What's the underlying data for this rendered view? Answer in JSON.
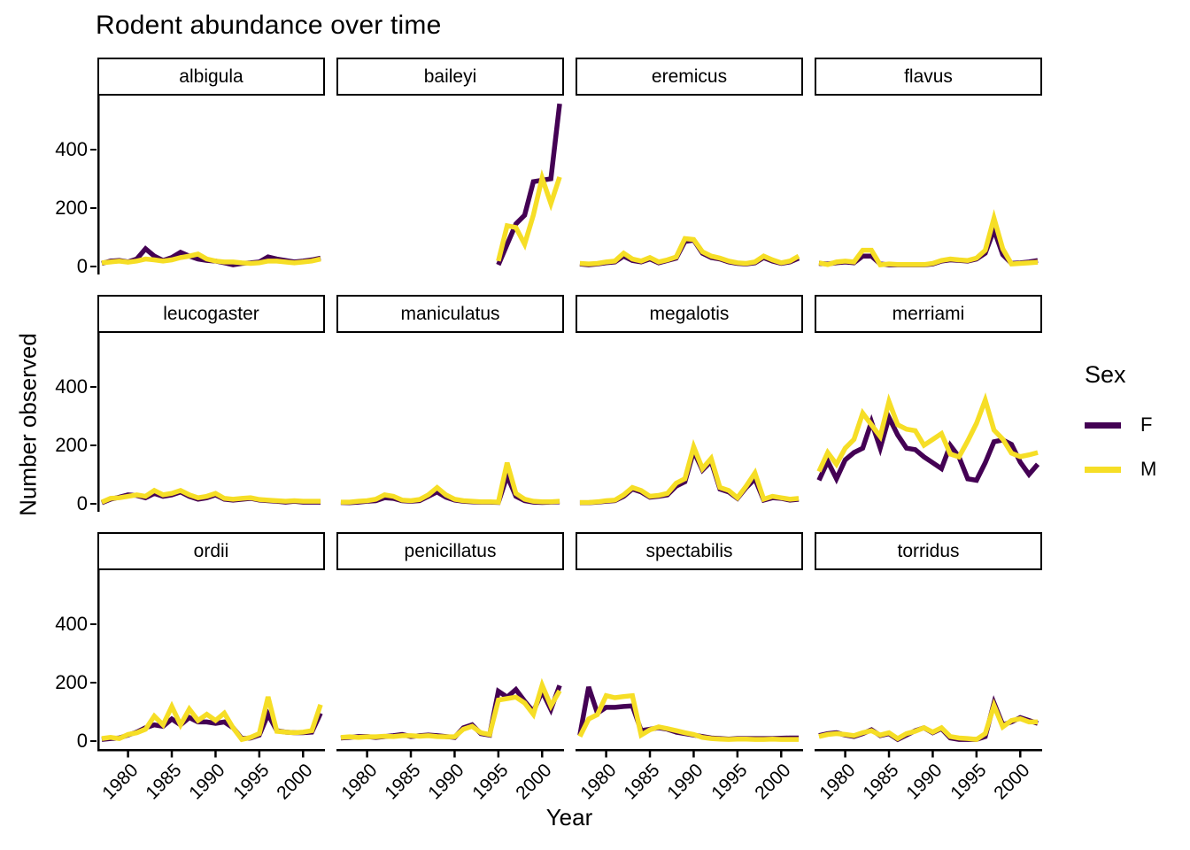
{
  "title": "Rodent abundance over time",
  "axes": {
    "x_label": "Year",
    "y_label": "Number observed"
  },
  "legend": {
    "title": "Sex",
    "entries": [
      {
        "label": "F",
        "color": "#440154"
      },
      {
        "label": "M",
        "color": "#F6DE26"
      }
    ]
  },
  "chart_data": {
    "type": "line",
    "title": "Rodent abundance over time",
    "xlabel": "Year",
    "ylabel": "Number observed",
    "legend_title": "Sex",
    "legend_position": "right",
    "grid": false,
    "x": [
      1977,
      1978,
      1979,
      1980,
      1981,
      1982,
      1983,
      1984,
      1985,
      1986,
      1987,
      1988,
      1989,
      1990,
      1991,
      1992,
      1993,
      1994,
      1995,
      1996,
      1997,
      1998,
      1999,
      2000,
      2001,
      2002
    ],
    "x_ticks": [
      1980,
      1985,
      1990,
      1995,
      2000
    ],
    "y_ticks": [
      0,
      200,
      400
    ],
    "xlim": [
      1976.5,
      2002.5
    ],
    "ylim": [
      -28,
      585
    ],
    "series_names": [
      "F",
      "M"
    ],
    "colors": {
      "F": "#440154",
      "M": "#F6DE26"
    },
    "facets": [
      {
        "name": "albigula",
        "F": [
          10,
          18,
          20,
          15,
          25,
          60,
          35,
          20,
          30,
          48,
          35,
          25,
          20,
          18,
          12,
          5,
          10,
          12,
          15,
          32,
          25,
          20,
          15,
          18,
          22,
          28
        ],
        "M": [
          12,
          15,
          18,
          14,
          18,
          25,
          22,
          18,
          22,
          30,
          35,
          42,
          25,
          18,
          15,
          15,
          12,
          10,
          12,
          18,
          18,
          15,
          12,
          15,
          18,
          25
        ]
      },
      {
        "name": "baileyi",
        "F": [
          null,
          null,
          null,
          null,
          null,
          null,
          null,
          null,
          null,
          null,
          null,
          null,
          null,
          null,
          null,
          null,
          null,
          null,
          5,
          75,
          145,
          175,
          290,
          295,
          300,
          557
        ],
        "M": [
          null,
          null,
          null,
          null,
          null,
          null,
          null,
          null,
          null,
          null,
          null,
          null,
          null,
          null,
          null,
          null,
          null,
          null,
          18,
          139,
          133,
          76,
          176,
          303,
          215,
          306
        ]
      },
      {
        "name": "eremicus",
        "F": [
          8,
          5,
          8,
          12,
          15,
          35,
          20,
          15,
          25,
          12,
          20,
          28,
          85,
          90,
          45,
          30,
          25,
          15,
          10,
          8,
          12,
          30,
          18,
          10,
          15,
          28
        ],
        "M": [
          10,
          8,
          10,
          15,
          18,
          45,
          25,
          18,
          30,
          15,
          22,
          32,
          95,
          92,
          50,
          35,
          28,
          18,
          12,
          10,
          15,
          35,
          22,
          12,
          18,
          35
        ]
      },
      {
        "name": "flavus",
        "F": [
          10,
          8,
          12,
          15,
          12,
          35,
          35,
          8,
          5,
          5,
          5,
          5,
          5,
          8,
          18,
          22,
          20,
          18,
          25,
          45,
          125,
          40,
          10,
          12,
          15,
          20
        ],
        "M": [
          12,
          6,
          15,
          18,
          15,
          55,
          55,
          5,
          8,
          6,
          6,
          6,
          6,
          10,
          20,
          25,
          22,
          20,
          28,
          55,
          165,
          60,
          8,
          10,
          12,
          14
        ]
      },
      {
        "name": "leucogaster",
        "F": [
          3,
          15,
          22,
          30,
          28,
          20,
          35,
          25,
          30,
          40,
          25,
          15,
          20,
          30,
          15,
          12,
          15,
          18,
          12,
          10,
          8,
          5,
          8,
          5,
          5,
          5
        ],
        "M": [
          5,
          18,
          20,
          25,
          30,
          25,
          45,
          30,
          35,
          45,
          30,
          20,
          25,
          35,
          18,
          15,
          18,
          20,
          14,
          12,
          10,
          8,
          10,
          8,
          8,
          8
        ]
      },
      {
        "name": "maniculatus",
        "F": [
          4,
          3,
          5,
          8,
          10,
          20,
          18,
          10,
          8,
          10,
          25,
          40,
          22,
          12,
          8,
          6,
          5,
          5,
          4,
          95,
          25,
          10,
          5,
          4,
          5,
          6
        ],
        "M": [
          5,
          5,
          8,
          10,
          15,
          30,
          25,
          12,
          10,
          14,
          30,
          55,
          30,
          15,
          10,
          8,
          6,
          6,
          5,
          140,
          35,
          15,
          8,
          6,
          6,
          8
        ]
      },
      {
        "name": "megalotis",
        "F": [
          3,
          3,
          5,
          8,
          10,
          25,
          50,
          40,
          22,
          25,
          30,
          60,
          75,
          180,
          115,
          145,
          50,
          40,
          18,
          55,
          85,
          12,
          20,
          18,
          12,
          15
        ],
        "M": [
          4,
          4,
          6,
          10,
          12,
          30,
          55,
          45,
          25,
          28,
          35,
          70,
          85,
          195,
          120,
          155,
          55,
          45,
          20,
          60,
          105,
          15,
          25,
          20,
          15,
          18
        ]
      },
      {
        "name": "merriami",
        "F": [
          80,
          145,
          85,
          150,
          175,
          190,
          280,
          190,
          295,
          235,
          190,
          185,
          160,
          140,
          120,
          200,
          160,
          85,
          80,
          140,
          212,
          218,
          203,
          142,
          100,
          135
        ],
        "M": [
          110,
          175,
          135,
          190,
          220,
          310,
          270,
          230,
          350,
          270,
          255,
          250,
          200,
          220,
          240,
          170,
          160,
          215,
          275,
          355,
          252,
          221,
          173,
          161,
          167,
          175
        ]
      },
      {
        "name": "ordii",
        "F": [
          5,
          8,
          10,
          20,
          30,
          45,
          55,
          50,
          75,
          55,
          80,
          65,
          65,
          60,
          65,
          45,
          8,
          10,
          20,
          91,
          35,
          30,
          28,
          28,
          30,
          95
        ],
        "M": [
          8,
          12,
          8,
          22,
          28,
          40,
          85,
          55,
          118,
          55,
          109,
          70,
          91,
          70,
          95,
          45,
          5,
          12,
          25,
          151,
          33,
          30,
          28,
          30,
          35,
          124
        ]
      },
      {
        "name": "penicillatus",
        "F": [
          10,
          12,
          15,
          15,
          12,
          15,
          18,
          22,
          15,
          18,
          20,
          18,
          15,
          12,
          45,
          55,
          25,
          20,
          170,
          150,
          176,
          136,
          100,
          170,
          108,
          190
        ],
        "M": [
          12,
          14,
          12,
          14,
          14,
          16,
          15,
          18,
          18,
          16,
          18,
          15,
          14,
          14,
          40,
          50,
          28,
          22,
          140,
          145,
          150,
          130,
          91,
          191,
          120,
          172
        ]
      },
      {
        "name": "spectabilis",
        "F": [
          20,
          185,
          95,
          115,
          115,
          118,
          120,
          35,
          40,
          45,
          40,
          30,
          25,
          20,
          15,
          10,
          8,
          6,
          8,
          8,
          8,
          8,
          8,
          9,
          10,
          10
        ],
        "M": [
          15,
          75,
          90,
          155,
          148,
          152,
          155,
          20,
          38,
          48,
          42,
          35,
          28,
          22,
          12,
          8,
          6,
          5,
          6,
          6,
          5,
          5,
          6,
          5,
          5,
          5
        ]
      },
      {
        "name": "torridus",
        "F": [
          18,
          25,
          28,
          20,
          15,
          25,
          38,
          18,
          25,
          5,
          20,
          35,
          45,
          28,
          42,
          10,
          5,
          5,
          5,
          15,
          130,
          55,
          65,
          80,
          70,
          60
        ],
        "M": [
          15,
          22,
          25,
          22,
          18,
          28,
          35,
          20,
          28,
          8,
          25,
          33,
          45,
          30,
          45,
          15,
          10,
          8,
          5,
          25,
          121,
          48,
          70,
          76,
          65,
          65
        ]
      }
    ]
  }
}
